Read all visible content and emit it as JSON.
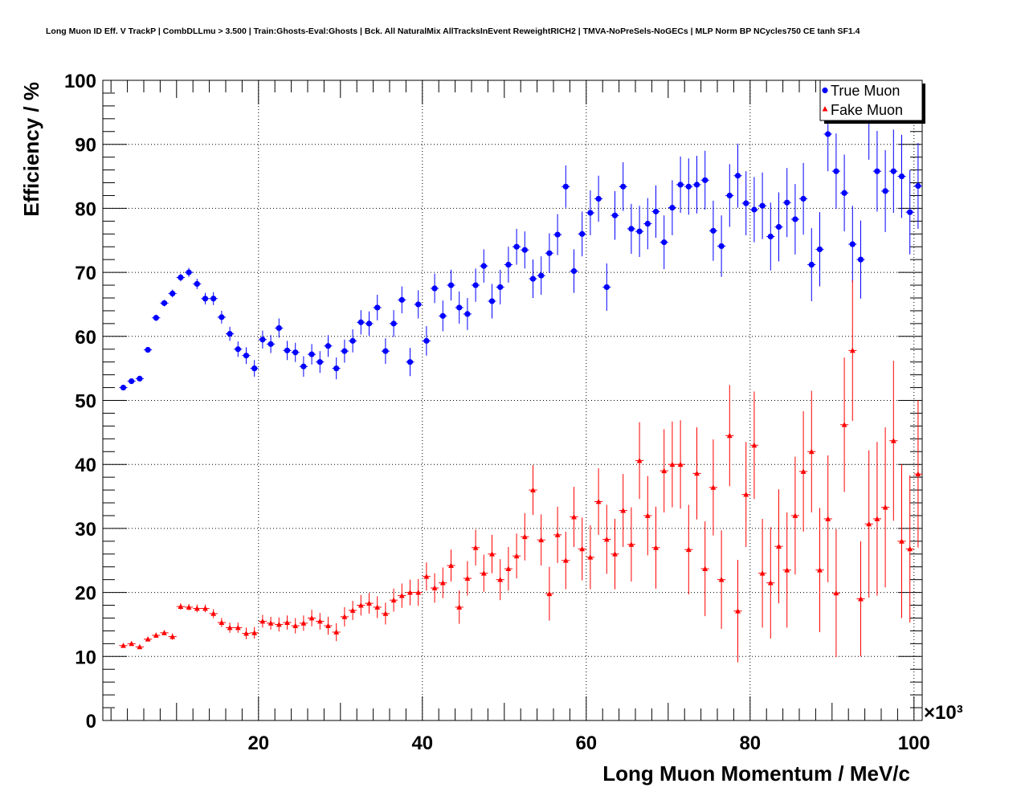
{
  "chart_data": {
    "type": "scatter",
    "title": "Long Muon ID Eff. V TrackP | CombDLLmu > 3.500 | Train:Ghosts-Eval:Ghosts | Bck. All NaturalMix AllTracksInEvent ReweightRICH2 | TMVA-NoPreSels-NoGECs | MLP Norm BP NCycles750 CE tanh SF1.4",
    "xlabel": "Long Muon Momentum / MeV/c",
    "ylabel": "Efficiency / %",
    "x_multiplier": "×10³",
    "xlim": [
      1000,
      101000
    ],
    "ylim": [
      0,
      100
    ],
    "x_ticks": [
      {
        "value": 20000,
        "label": "20"
      },
      {
        "value": 40000,
        "label": "40"
      },
      {
        "value": 60000,
        "label": "60"
      },
      {
        "value": 80000,
        "label": "80"
      },
      {
        "value": 100000,
        "label": "100"
      }
    ],
    "y_ticks": [
      {
        "value": 0,
        "label": "0"
      },
      {
        "value": 10,
        "label": "10"
      },
      {
        "value": 20,
        "label": "20"
      },
      {
        "value": 30,
        "label": "30"
      },
      {
        "value": 40,
        "label": "40"
      },
      {
        "value": 50,
        "label": "50"
      },
      {
        "value": 60,
        "label": "60"
      },
      {
        "value": 70,
        "label": "70"
      },
      {
        "value": 80,
        "label": "80"
      },
      {
        "value": 90,
        "label": "90"
      },
      {
        "value": 100,
        "label": "100"
      }
    ],
    "grid": true,
    "legend_position": "top-right",
    "series": [
      {
        "name": "True Muon",
        "color": "#0000ff",
        "marker": "circle",
        "x": [
          3500,
          4500,
          5500,
          6500,
          7500,
          8500,
          9500,
          10500,
          11500,
          12500,
          13500,
          14500,
          15500,
          16500,
          17500,
          18500,
          19500,
          20500,
          21500,
          22500,
          23500,
          24500,
          25500,
          26500,
          27500,
          28500,
          29500,
          30500,
          31500,
          32500,
          33500,
          34500,
          35500,
          36500,
          37500,
          38500,
          39500,
          40500,
          41500,
          42500,
          43500,
          44500,
          45500,
          46500,
          47500,
          48500,
          49500,
          50500,
          51500,
          52500,
          53500,
          54500,
          55500,
          56500,
          57500,
          58500,
          59500,
          60500,
          61500,
          62500,
          63500,
          64500,
          65500,
          66500,
          67500,
          68500,
          69500,
          70500,
          71500,
          72500,
          73500,
          74500,
          75500,
          76500,
          77500,
          78500,
          79500,
          80500,
          81500,
          82500,
          83500,
          84500,
          85500,
          86500,
          87500,
          88500,
          89500,
          90500,
          91500,
          92500,
          93500,
          94500,
          95500,
          96500,
          97500,
          98500,
          99500,
          100500
        ],
        "y": [
          52.0,
          53.0,
          53.4,
          57.9,
          62.9,
          65.2,
          66.7,
          69.2,
          70.0,
          68.2,
          65.9,
          65.9,
          63.0,
          60.4,
          58.0,
          57.0,
          55.0,
          59.5,
          58.8,
          61.3,
          57.8,
          57.5,
          55.3,
          57.2,
          56.0,
          58.5,
          55.0,
          57.7,
          59.3,
          62.2,
          62.0,
          64.5,
          57.7,
          62.0,
          65.7,
          56.0,
          65.0,
          59.3,
          67.5,
          63.2,
          68.0,
          64.5,
          63.5,
          68.0,
          71.0,
          65.5,
          67.7,
          71.2,
          74.0,
          73.5,
          69.0,
          69.5,
          73.0,
          75.9,
          83.4,
          70.2,
          76.0,
          79.3,
          81.5,
          67.7,
          78.9,
          83.4,
          76.8,
          76.4,
          77.6,
          79.5,
          74.7,
          80.1,
          83.7,
          83.4,
          83.7,
          84.4,
          76.5,
          74.1,
          82.0,
          85.1,
          80.8,
          79.8,
          80.4,
          75.6,
          77.1,
          80.9,
          78.3,
          81.5,
          71.2,
          73.6,
          91.6,
          85.8,
          82.4,
          74.4,
          72.0,
          93.8,
          85.8,
          82.7,
          85.8,
          85.0,
          79.4,
          83.5
        ],
        "err": [
          0.3,
          0.3,
          0.3,
          0.4,
          0.5,
          0.5,
          0.6,
          0.6,
          0.7,
          0.8,
          0.9,
          1.0,
          1.0,
          1.1,
          1.2,
          1.3,
          1.3,
          1.4,
          1.4,
          1.5,
          1.5,
          1.5,
          1.6,
          1.6,
          1.7,
          1.7,
          1.7,
          1.8,
          1.8,
          1.9,
          1.9,
          2.0,
          2.0,
          2.1,
          2.1,
          2.2,
          2.2,
          2.3,
          2.3,
          2.4,
          2.4,
          2.5,
          2.5,
          2.6,
          2.6,
          2.7,
          2.7,
          2.8,
          2.8,
          2.9,
          3.0,
          3.0,
          3.1,
          3.2,
          3.3,
          3.4,
          3.5,
          3.5,
          3.6,
          3.7,
          3.8,
          3.8,
          3.9,
          4.0,
          4.0,
          4.1,
          4.2,
          4.3,
          4.4,
          4.4,
          4.5,
          4.6,
          4.7,
          4.8,
          4.9,
          5.0,
          5.0,
          5.1,
          5.2,
          5.3,
          5.4,
          5.4,
          5.5,
          5.6,
          5.7,
          5.8,
          5.8,
          5.9,
          6.0,
          6.0,
          6.1,
          6.2,
          6.3,
          6.4,
          6.5,
          6.5,
          6.6,
          6.7
        ]
      },
      {
        "name": "Fake Muon",
        "color": "#ff0000",
        "marker": "triangle",
        "x": [
          3500,
          4500,
          5500,
          6500,
          7500,
          8500,
          9500,
          10500,
          11500,
          12500,
          13500,
          14500,
          15500,
          16500,
          17500,
          18500,
          19500,
          20500,
          21500,
          22500,
          23500,
          24500,
          25500,
          26500,
          27500,
          28500,
          29500,
          30500,
          31500,
          32500,
          33500,
          34500,
          35500,
          36500,
          37500,
          38500,
          39500,
          40500,
          41500,
          42500,
          43500,
          44500,
          45500,
          46500,
          47500,
          48500,
          49500,
          50500,
          51500,
          52500,
          53500,
          54500,
          55500,
          56500,
          57500,
          58500,
          59500,
          60500,
          61500,
          62500,
          63500,
          64500,
          65500,
          66500,
          67500,
          68500,
          69500,
          70500,
          71500,
          72500,
          73500,
          74500,
          75500,
          76500,
          77500,
          78500,
          79500,
          80500,
          81500,
          82500,
          83500,
          84500,
          85500,
          86500,
          87500,
          88500,
          89500,
          90500,
          91500,
          92500,
          93500,
          94500,
          95500,
          96500,
          97500,
          98500,
          99500,
          100500
        ],
        "y": [
          11.7,
          12.0,
          11.5,
          12.7,
          13.3,
          13.7,
          13.1,
          17.8,
          17.7,
          17.5,
          17.5,
          16.7,
          15.3,
          14.5,
          14.5,
          13.6,
          13.7,
          15.5,
          15.2,
          15.0,
          15.3,
          14.8,
          15.2,
          16.0,
          15.5,
          14.8,
          13.8,
          16.2,
          17.2,
          18.0,
          18.3,
          17.7,
          16.7,
          18.8,
          19.5,
          20.0,
          20.0,
          22.5,
          20.7,
          21.5,
          24.2,
          17.7,
          22.2,
          27.0,
          23.0,
          26.0,
          22.0,
          23.7,
          25.7,
          28.7,
          36.0,
          28.2,
          19.8,
          29.0,
          25.0,
          31.8,
          26.8,
          25.5,
          34.2,
          28.3,
          26.0,
          32.8,
          27.5,
          40.6,
          32.0,
          27.0,
          39.0,
          40.0,
          40.0,
          26.7,
          38.6,
          23.7,
          36.4,
          22.0,
          44.5,
          17.1,
          35.3,
          43.0,
          23.0,
          21.5,
          27.2,
          23.5,
          32.0,
          38.9,
          42.0,
          23.5,
          31.5,
          19.9,
          46.2,
          57.8,
          19.0,
          30.7,
          31.5,
          33.3,
          43.7,
          28.0,
          26.8,
          38.5
        ],
        "err": [
          0.3,
          0.3,
          0.3,
          0.3,
          0.4,
          0.4,
          0.5,
          0.5,
          0.5,
          0.6,
          0.6,
          0.7,
          0.7,
          0.8,
          0.8,
          0.9,
          0.9,
          1.0,
          1.0,
          1.1,
          1.1,
          1.2,
          1.2,
          1.3,
          1.3,
          1.4,
          1.4,
          1.5,
          1.5,
          1.6,
          1.6,
          1.7,
          1.7,
          1.8,
          1.9,
          2.0,
          2.1,
          2.2,
          2.3,
          2.4,
          2.5,
          2.6,
          2.7,
          2.8,
          2.9,
          3.0,
          3.2,
          3.4,
          3.5,
          3.7,
          3.9,
          4.0,
          4.2,
          4.4,
          4.5,
          4.7,
          4.9,
          5.0,
          5.2,
          5.4,
          5.5,
          5.7,
          5.8,
          6.0,
          6.2,
          6.4,
          6.5,
          6.7,
          6.9,
          7.0,
          7.2,
          7.4,
          7.5,
          7.7,
          7.9,
          8.0,
          8.2,
          8.4,
          8.5,
          8.7,
          8.9,
          9.0,
          9.2,
          9.4,
          9.5,
          9.7,
          9.9,
          10.0,
          10.5,
          11.0,
          9.0,
          11.5,
          12.0,
          12.5,
          12.5,
          12.0,
          11.5,
          11.5
        ]
      }
    ]
  }
}
